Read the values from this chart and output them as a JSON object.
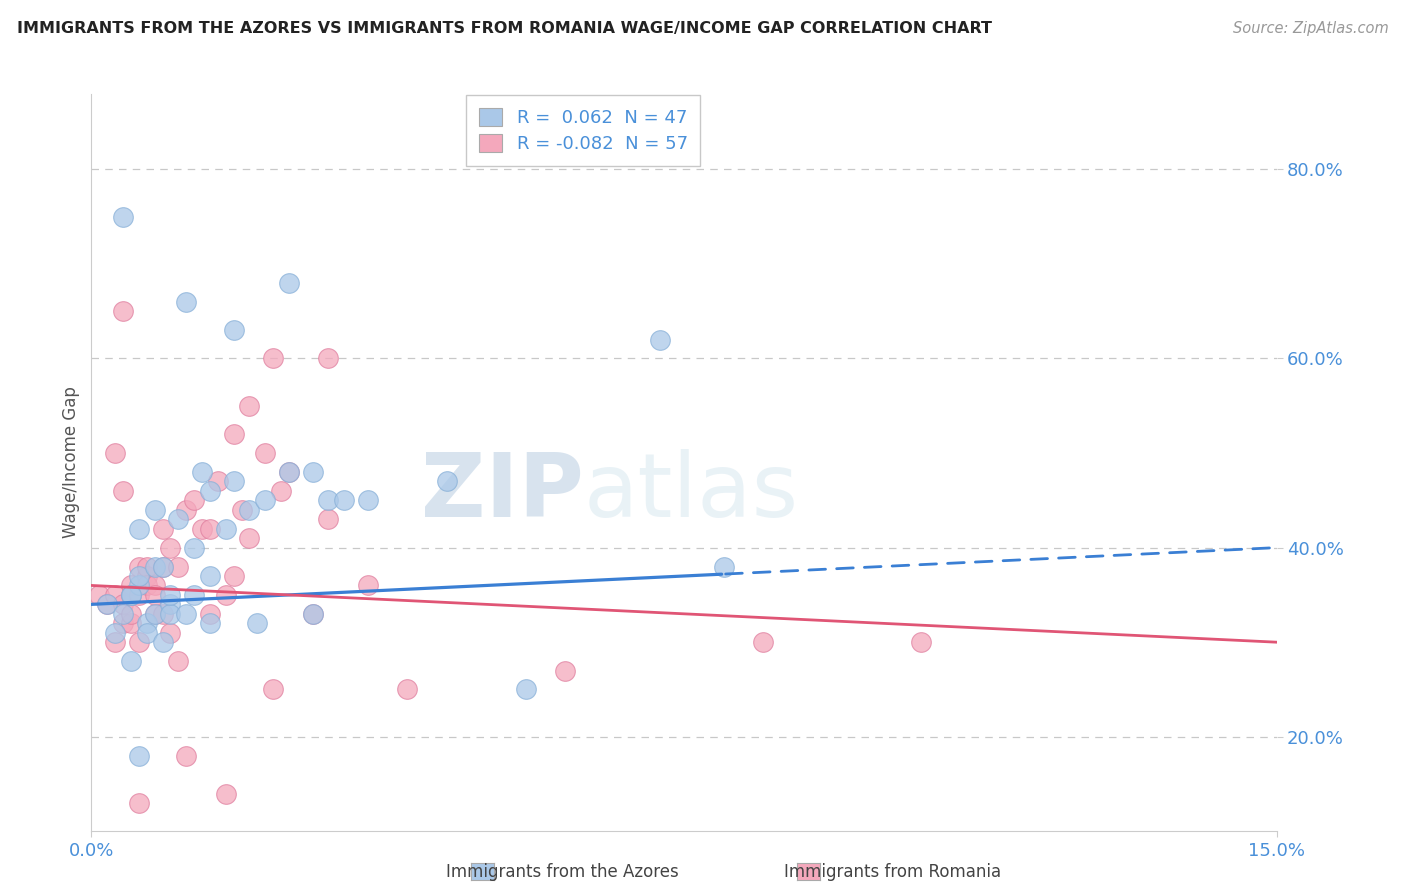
{
  "title": "IMMIGRANTS FROM THE AZORES VS IMMIGRANTS FROM ROMANIA WAGE/INCOME GAP CORRELATION CHART",
  "source": "Source: ZipAtlas.com",
  "ylabel": "Wage/Income Gap",
  "x_min": 0.0,
  "x_max": 15.0,
  "y_min": 10.0,
  "y_max": 88.0,
  "y_ticks": [
    20.0,
    40.0,
    60.0,
    80.0
  ],
  "x_ticks": [
    0.0,
    15.0
  ],
  "azores_color": "#aac8e8",
  "azores_edge_color": "#88b0d8",
  "romania_color": "#f4a8bc",
  "romania_edge_color": "#e080a0",
  "azores_trend_color": "#3a7fd4",
  "romania_trend_color": "#e05575",
  "azores_R": 0.062,
  "azores_N": 47,
  "romania_R": -0.082,
  "romania_N": 57,
  "watermark_zip": "ZIP",
  "watermark_atlas": "atlas",
  "legend_label_azores": "Immigrants from the Azores",
  "legend_label_romania": "Immigrants from Romania",
  "azores_scatter_x": [
    0.2,
    0.3,
    0.4,
    0.4,
    0.5,
    0.5,
    0.6,
    0.6,
    0.6,
    0.7,
    0.7,
    0.8,
    0.8,
    0.8,
    0.9,
    0.9,
    1.0,
    1.0,
    1.1,
    1.2,
    1.2,
    1.3,
    1.3,
    1.4,
    1.5,
    1.5,
    1.5,
    1.7,
    1.8,
    1.8,
    2.0,
    2.1,
    2.2,
    2.5,
    2.5,
    2.8,
    2.8,
    3.0,
    3.2,
    3.5,
    4.5,
    5.5,
    7.2,
    8.0,
    1.0,
    0.5,
    0.6
  ],
  "azores_scatter_y": [
    34,
    31,
    33,
    75,
    35,
    28,
    36,
    42,
    37,
    32,
    31,
    33,
    44,
    38,
    30,
    38,
    34,
    33,
    43,
    66,
    33,
    40,
    35,
    48,
    37,
    46,
    32,
    42,
    47,
    63,
    44,
    32,
    45,
    48,
    68,
    48,
    33,
    45,
    45,
    45,
    47,
    25,
    62,
    38,
    35,
    35,
    18
  ],
  "romania_scatter_x": [
    0.1,
    0.2,
    0.3,
    0.3,
    0.3,
    0.4,
    0.4,
    0.4,
    0.5,
    0.5,
    0.5,
    0.5,
    0.6,
    0.6,
    0.6,
    0.7,
    0.7,
    0.7,
    0.8,
    0.8,
    0.8,
    0.9,
    0.9,
    0.9,
    1.0,
    1.0,
    1.1,
    1.2,
    1.2,
    1.3,
    1.4,
    1.5,
    1.5,
    1.6,
    1.7,
    1.8,
    1.8,
    1.9,
    2.0,
    2.0,
    2.2,
    2.3,
    2.4,
    2.5,
    2.8,
    3.0,
    3.0,
    3.5,
    4.0,
    6.0,
    8.5,
    10.5,
    0.4,
    0.6,
    1.1,
    1.7,
    2.3
  ],
  "romania_scatter_y": [
    35,
    34,
    35,
    30,
    50,
    32,
    46,
    34,
    36,
    32,
    35,
    33,
    38,
    30,
    35,
    37,
    38,
    36,
    36,
    33,
    35,
    42,
    38,
    33,
    40,
    31,
    38,
    44,
    18,
    45,
    42,
    33,
    42,
    47,
    35,
    52,
    37,
    44,
    55,
    41,
    50,
    60,
    46,
    48,
    33,
    43,
    60,
    36,
    25,
    27,
    30,
    30,
    65,
    13,
    28,
    14,
    25
  ]
}
